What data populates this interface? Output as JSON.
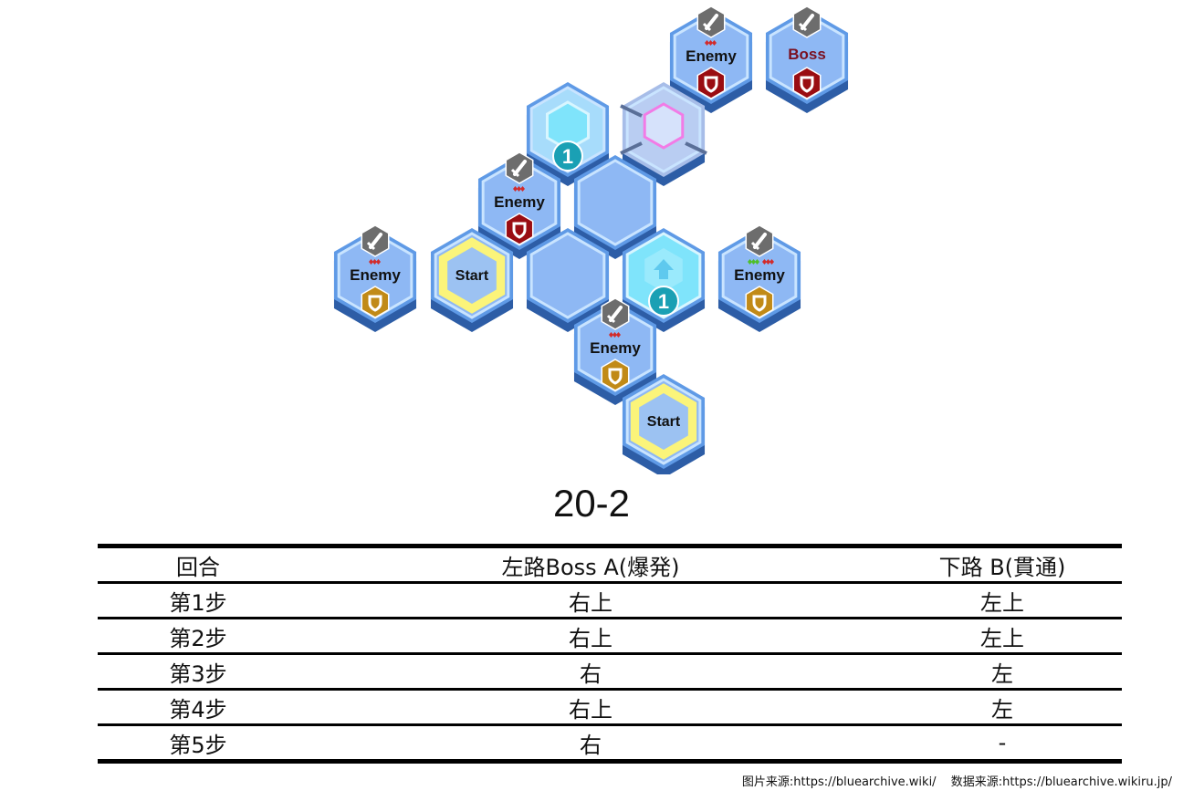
{
  "map": {
    "tiles": [
      {
        "id": "enemy-top",
        "kind": "enemy",
        "label": "Enemy",
        "shield": "red",
        "mods": [
          "red"
        ]
      },
      {
        "id": "boss",
        "kind": "boss",
        "label": "Boss",
        "shield": "red",
        "mods": []
      },
      {
        "id": "warp-cyan",
        "kind": "warp",
        "badge": "1"
      },
      {
        "id": "warp-pink",
        "kind": "portal"
      },
      {
        "id": "enemy-mid",
        "kind": "enemy",
        "label": "Enemy",
        "shield": "red",
        "mods": [
          "red"
        ]
      },
      {
        "id": "empty-1",
        "kind": "empty"
      },
      {
        "id": "enemy-left",
        "kind": "enemy",
        "label": "Enemy",
        "shield": "gold",
        "mods": [
          "red"
        ]
      },
      {
        "id": "start-left",
        "kind": "start",
        "label": "Start"
      },
      {
        "id": "empty-2",
        "kind": "empty"
      },
      {
        "id": "up-arrow",
        "kind": "arrow",
        "badge": "1"
      },
      {
        "id": "enemy-right",
        "kind": "enemy",
        "label": "Enemy",
        "shield": "gold",
        "mods": [
          "green",
          "red"
        ]
      },
      {
        "id": "enemy-bottom",
        "kind": "enemy",
        "label": "Enemy",
        "shield": "gold",
        "mods": [
          "red"
        ]
      },
      {
        "id": "start-bottom",
        "kind": "start",
        "label": "Start"
      }
    ]
  },
  "stage": {
    "title": "20-2"
  },
  "table": {
    "headers": [
      "回合",
      "左路Boss A(爆発)",
      "下路 B(貫通)"
    ],
    "rows": [
      {
        "step": "第1步",
        "a": "右上",
        "b": "左上"
      },
      {
        "step": "第2步",
        "a": "右上",
        "b": "左上"
      },
      {
        "step": "第3步",
        "a": "右",
        "b": "左"
      },
      {
        "step": "第4步",
        "a": "右上",
        "b": "左"
      },
      {
        "step": "第5步",
        "a": "右",
        "b": "-"
      }
    ]
  },
  "source": {
    "image": "图片来源:https://bluearchive.wiki/",
    "data": "数据来源:https://bluearchive.wikiru.jp/"
  },
  "colors": {
    "hex_fill": "#8eb8f4",
    "hex_edge": "#3d79c9",
    "hex_inner": "#c9e4ff",
    "enemy_shield_red": "#9a0d12",
    "enemy_shield_gold": "#c18a17",
    "start_ring": "#fbf47a",
    "warp_cyan": "#7fe4fb",
    "badge": "#1aa0b4"
  }
}
